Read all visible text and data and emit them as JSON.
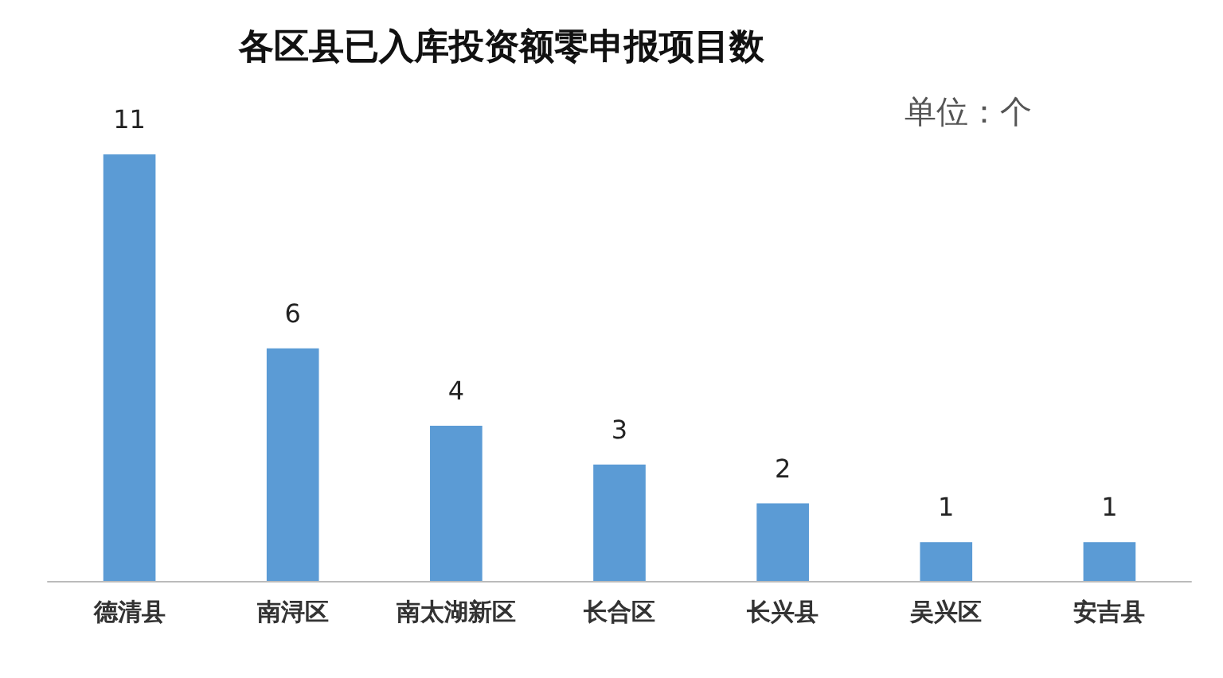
{
  "chart_data": {
    "type": "bar",
    "title": "各区县已入库投资额零申报项目数",
    "annotations": [
      "单位：个"
    ],
    "categories": [
      "德清县",
      "南浔区",
      "南太湖新区",
      "长合区",
      "长兴县",
      "吴兴区",
      "安吉县"
    ],
    "values": [
      11,
      6,
      4,
      3,
      2,
      1,
      1
    ],
    "color": "#5b9bd5",
    "data_labels": true
  }
}
